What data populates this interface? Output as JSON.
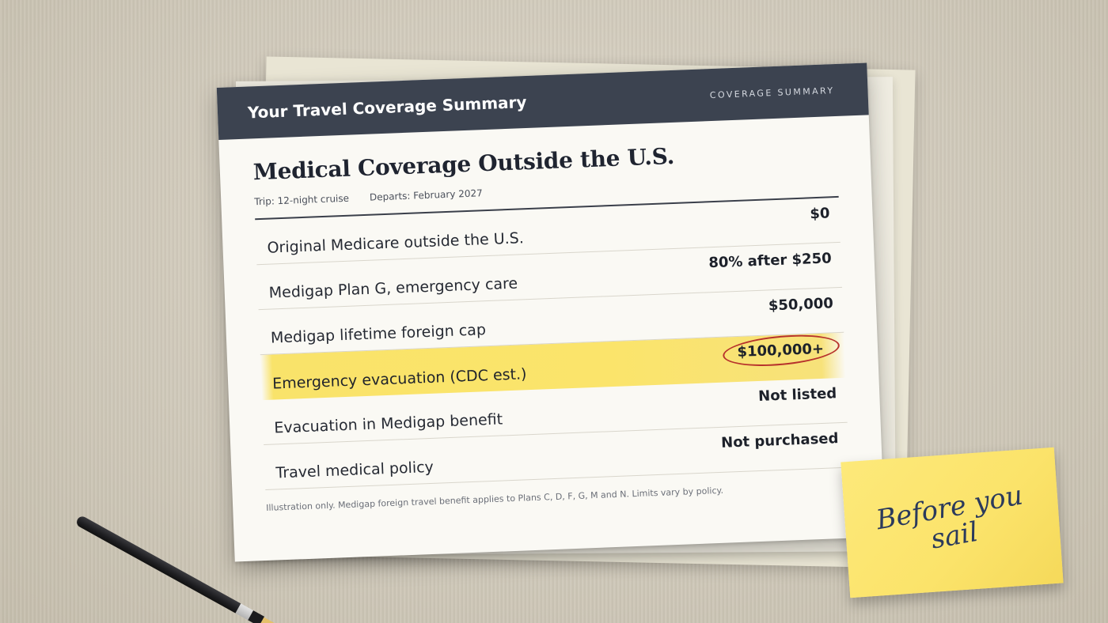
{
  "header": {
    "title": "Your Travel Coverage Summary",
    "tag": "COVERAGE SUMMARY"
  },
  "document": {
    "title": "Medical Coverage Outside the U.S.",
    "trip": "Trip: 12-night cruise",
    "departs": "Departs: February 2027",
    "footnote": "Illustration only. Medigap foreign travel benefit applies to Plans C, D, F, G, M and N. Limits vary by policy."
  },
  "rows": [
    {
      "label": "Original Medicare outside the U.S.",
      "value": "$0"
    },
    {
      "label": "Medigap Plan G, emergency care",
      "value": "80% after $250"
    },
    {
      "label": "Medigap lifetime foreign cap",
      "value": "$50,000"
    },
    {
      "label": "Emergency evacuation (CDC est.)",
      "value": "$100,000+",
      "highlight": true
    },
    {
      "label": "Evacuation in Medigap benefit",
      "value": "Not listed"
    },
    {
      "label": "Travel medical policy",
      "value": "Not purchased"
    }
  ],
  "sticky_note": {
    "text": "Before you sail"
  },
  "colors": {
    "header_bg": "#3c4350",
    "highlight": "#fbe46b",
    "circle": "#b7322c",
    "sticky": "#fbe36a",
    "handwriting": "#2b3a5c"
  }
}
